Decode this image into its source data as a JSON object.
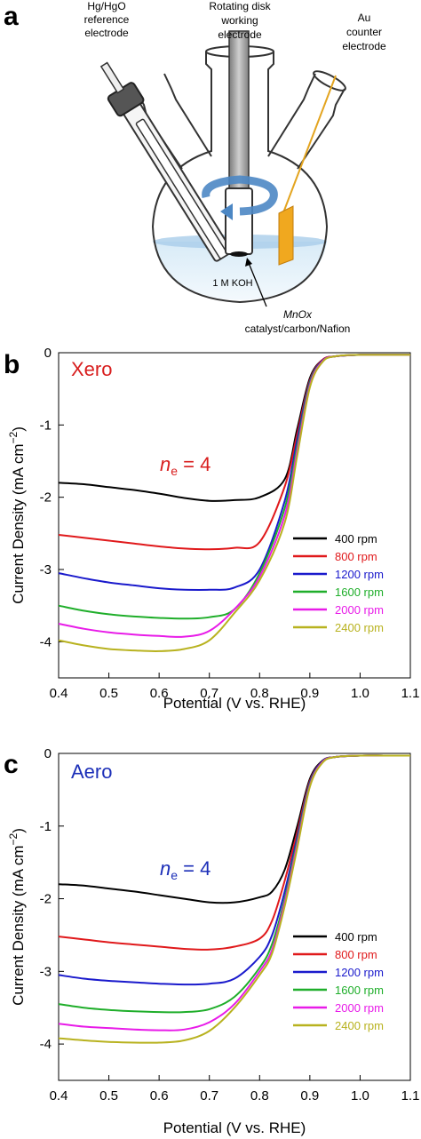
{
  "panel_a": {
    "letter": "a",
    "ref_label_1": "Hg/HgO",
    "ref_label_2": "reference",
    "ref_label_3": "electrode",
    "work_label_1": "Rotating disk",
    "work_label_2": "working",
    "work_label_3": "electrode",
    "counter_label_1": "Au",
    "counter_label_2": "counter",
    "counter_label_3": "electrode",
    "solution_label": "1 M KOH",
    "catalyst_label_1": "MnOx",
    "catalyst_label_2": "catalyst/carbon/Nafion"
  },
  "legend_labels": [
    "400 rpm",
    "800 rpm",
    "1200 rpm",
    "1600 rpm",
    "2000 rpm",
    "2400 rpm"
  ],
  "series_colors": [
    "#000000",
    "#e0191b",
    "#1a1acc",
    "#1fae2a",
    "#e81be8",
    "#b8b21f"
  ],
  "chart_data": [
    {
      "type": "line",
      "panel_letter": "b",
      "title": "Xero",
      "title_color": "#d81e1e",
      "annotation": "n_e = 4",
      "annotation_n": "n",
      "annotation_sub": "e",
      "annotation_rest": " = 4",
      "xlabel": "Potential (V vs. RHE)",
      "ylabel": "Current Density (mA cm",
      "ylabel_sup": "−2",
      "xlim": [
        0.4,
        1.1
      ],
      "ylim": [
        -4.5,
        0
      ],
      "xticks": [
        "0.4",
        "0.5",
        "0.6",
        "0.7",
        "0.8",
        "0.9",
        "1.0",
        "1.1"
      ],
      "yticks": [
        "0",
        "-1",
        "-2",
        "-3",
        "-4"
      ],
      "legend_position": "center-right",
      "x": [
        0.4,
        0.45,
        0.5,
        0.55,
        0.6,
        0.65,
        0.7,
        0.75,
        0.8,
        0.85,
        0.875,
        0.9,
        0.925,
        0.95,
        1.0,
        1.05,
        1.1
      ],
      "series": [
        {
          "name": "400 rpm",
          "values": [
            -1.8,
            -1.82,
            -1.86,
            -1.9,
            -1.95,
            -2.01,
            -2.05,
            -2.04,
            -2.0,
            -1.75,
            -1.05,
            -0.35,
            -0.1,
            -0.05,
            -0.03,
            -0.03,
            -0.03
          ]
        },
        {
          "name": "800 rpm",
          "values": [
            -2.52,
            -2.56,
            -2.6,
            -2.64,
            -2.68,
            -2.71,
            -2.72,
            -2.7,
            -2.62,
            -1.85,
            -1.12,
            -0.38,
            -0.1,
            -0.05,
            -0.03,
            -0.03,
            -0.03
          ]
        },
        {
          "name": "1200 rpm",
          "values": [
            -3.05,
            -3.12,
            -3.18,
            -3.22,
            -3.26,
            -3.28,
            -3.28,
            -3.25,
            -3.0,
            -2.05,
            -1.2,
            -0.4,
            -0.11,
            -0.05,
            -0.03,
            -0.03,
            -0.03
          ]
        },
        {
          "name": "1600 rpm",
          "values": [
            -3.5,
            -3.57,
            -3.62,
            -3.65,
            -3.67,
            -3.68,
            -3.66,
            -3.55,
            -3.05,
            -2.15,
            -1.28,
            -0.42,
            -0.12,
            -0.05,
            -0.03,
            -0.03,
            -0.03
          ]
        },
        {
          "name": "2000 rpm",
          "values": [
            -3.75,
            -3.82,
            -3.87,
            -3.9,
            -3.92,
            -3.93,
            -3.85,
            -3.55,
            -3.1,
            -2.25,
            -1.35,
            -0.45,
            -0.12,
            -0.05,
            -0.03,
            -0.03,
            -0.03
          ]
        },
        {
          "name": "2400 rpm",
          "values": [
            -3.98,
            -4.05,
            -4.1,
            -4.12,
            -4.13,
            -4.1,
            -3.98,
            -3.6,
            -3.15,
            -2.35,
            -1.42,
            -0.48,
            -0.13,
            -0.05,
            -0.03,
            -0.03,
            -0.03
          ]
        }
      ]
    },
    {
      "type": "line",
      "panel_letter": "c",
      "title": "Aero",
      "title_color": "#1c2fb8",
      "annotation": "n_e = 4",
      "annotation_n": "n",
      "annotation_sub": "e",
      "annotation_rest": " = 4",
      "xlabel": "Potential (V vs. RHE)",
      "ylabel": "Current Density (mA cm",
      "ylabel_sup": "−2",
      "xlim": [
        0.4,
        1.1
      ],
      "ylim": [
        -4.5,
        0
      ],
      "xticks": [
        "0.4",
        "0.5",
        "0.6",
        "0.7",
        "0.8",
        "0.9",
        "1.0",
        "1.1"
      ],
      "yticks": [
        "0",
        "-1",
        "-2",
        "-3",
        "-4"
      ],
      "legend_position": "center-right",
      "x": [
        0.4,
        0.45,
        0.5,
        0.55,
        0.6,
        0.65,
        0.7,
        0.75,
        0.8,
        0.825,
        0.85,
        0.875,
        0.9,
        0.925,
        0.95,
        1.0,
        1.05,
        1.1
      ],
      "series": [
        {
          "name": "400 rpm",
          "values": [
            -1.8,
            -1.82,
            -1.86,
            -1.9,
            -1.95,
            -2.0,
            -2.05,
            -2.05,
            -1.98,
            -1.9,
            -1.6,
            -1.0,
            -0.35,
            -0.1,
            -0.05,
            -0.03,
            -0.03,
            -0.03
          ]
        },
        {
          "name": "800 rpm",
          "values": [
            -2.52,
            -2.56,
            -2.6,
            -2.63,
            -2.66,
            -2.69,
            -2.7,
            -2.66,
            -2.55,
            -2.3,
            -1.75,
            -1.08,
            -0.38,
            -0.11,
            -0.05,
            -0.03,
            -0.03,
            -0.03
          ]
        },
        {
          "name": "1200 rpm",
          "values": [
            -3.05,
            -3.1,
            -3.13,
            -3.15,
            -3.17,
            -3.18,
            -3.17,
            -3.1,
            -2.8,
            -2.5,
            -1.9,
            -1.15,
            -0.4,
            -0.11,
            -0.05,
            -0.03,
            -0.03,
            -0.03
          ]
        },
        {
          "name": "1600 rpm",
          "values": [
            -3.45,
            -3.5,
            -3.53,
            -3.55,
            -3.56,
            -3.56,
            -3.52,
            -3.35,
            -2.95,
            -2.62,
            -2.0,
            -1.2,
            -0.42,
            -0.12,
            -0.05,
            -0.03,
            -0.03,
            -0.03
          ]
        },
        {
          "name": "2000 rpm",
          "values": [
            -3.72,
            -3.76,
            -3.78,
            -3.8,
            -3.81,
            -3.8,
            -3.7,
            -3.45,
            -3.0,
            -2.7,
            -2.05,
            -1.25,
            -0.44,
            -0.12,
            -0.05,
            -0.03,
            -0.03,
            -0.03
          ]
        },
        {
          "name": "2400 rpm",
          "values": [
            -3.92,
            -3.95,
            -3.97,
            -3.98,
            -3.98,
            -3.95,
            -3.82,
            -3.5,
            -3.05,
            -2.75,
            -2.1,
            -1.3,
            -0.46,
            -0.13,
            -0.05,
            -0.03,
            -0.03,
            -0.03
          ]
        }
      ]
    }
  ]
}
